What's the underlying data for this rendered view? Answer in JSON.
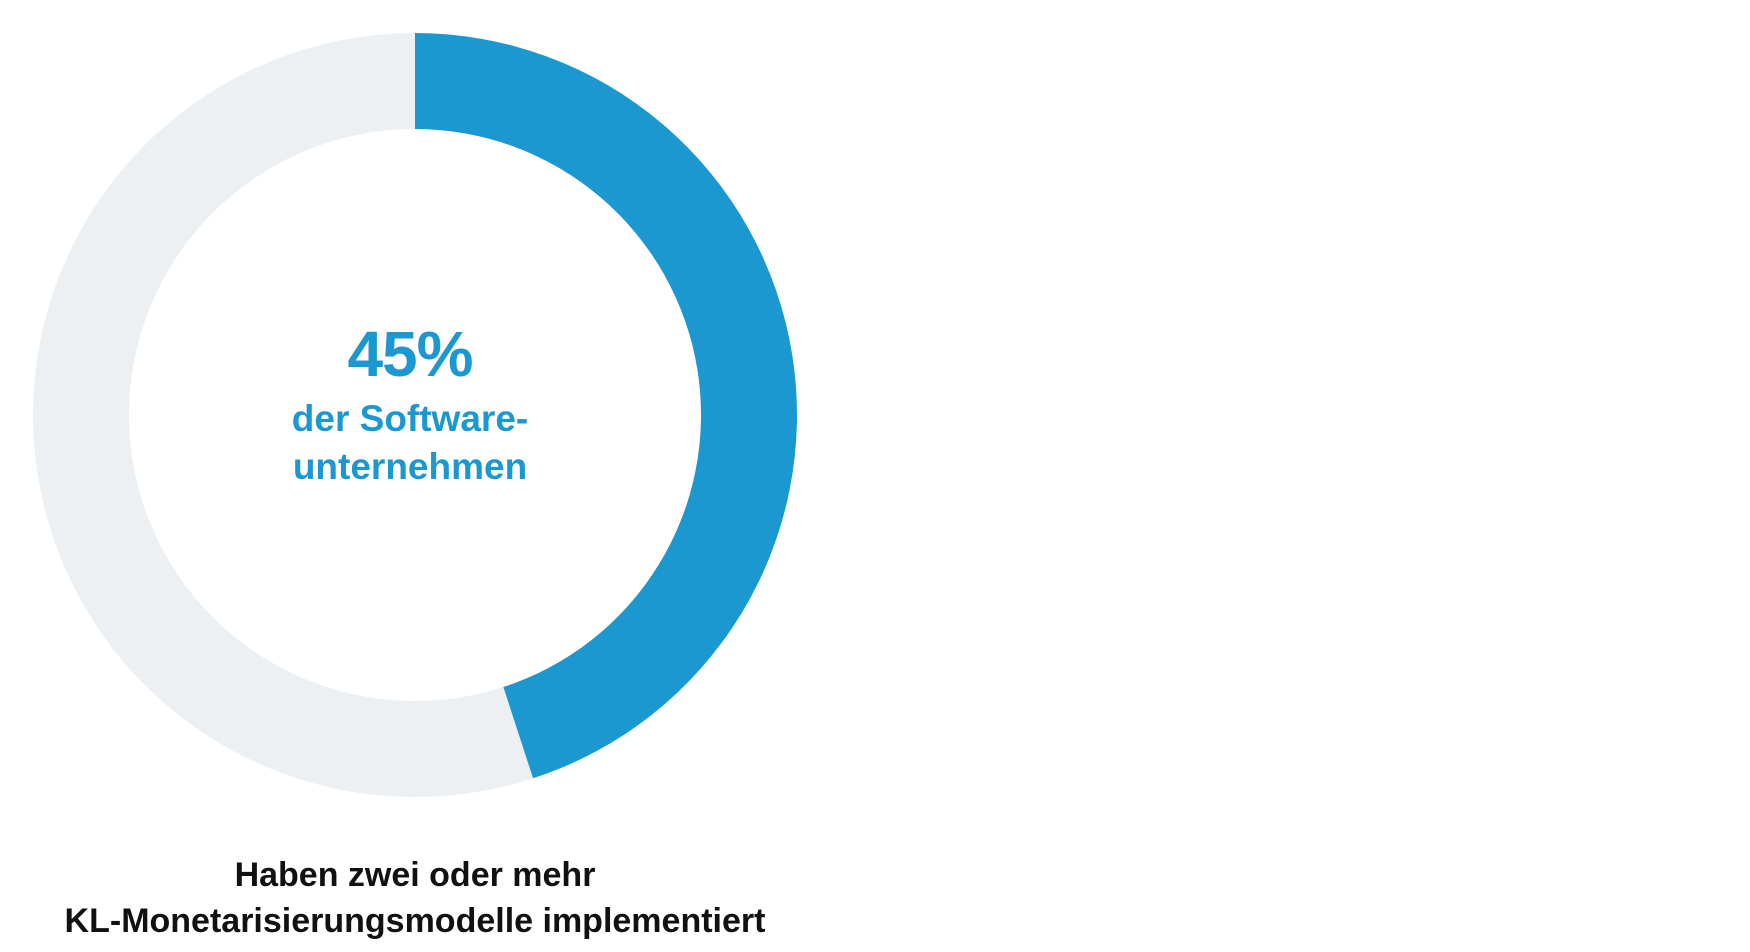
{
  "chart_data": {
    "type": "pie",
    "value_percent": 45,
    "value_label": "45%",
    "center_text": [
      "der Software-",
      "unternehmen"
    ],
    "caption": [
      "Haben zwei oder mehr",
      "KL-Monetarisierungsmodelle implementiert"
    ],
    "colors": {
      "filled": "#1b98d0",
      "remainder": "#edf0f3",
      "center_text": "#1b98d0",
      "caption": "#111111"
    }
  }
}
